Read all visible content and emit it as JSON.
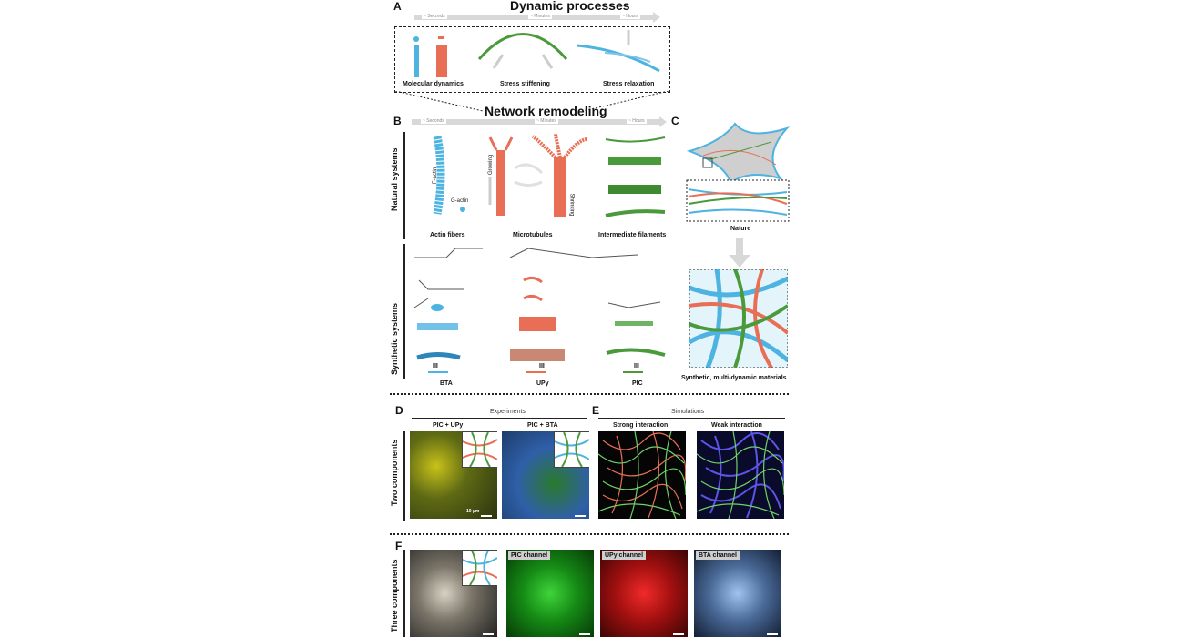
{
  "panelA": {
    "letter": "A",
    "title": "Dynamic processes",
    "timescale": [
      "~ Seconds",
      "~ Minutes",
      "~ Hours"
    ],
    "items": [
      "Molecular dynamics",
      "Stress stiffening",
      "Stress relaxation"
    ]
  },
  "network_remodeling": "Network remodeling",
  "panelB": {
    "letter": "B",
    "timescale": [
      "~ Seconds",
      "~ Minutes",
      "~ Hours"
    ],
    "row_natural": "Natural systems",
    "row_synthetic": "Synthetic systems",
    "natural_items": [
      "Actin fibers",
      "Microtubules",
      "Intermediate filaments"
    ],
    "natural_annotations": {
      "factin": "F-actin",
      "gactin": "G-actin",
      "growing": "Growing",
      "shrinking": "Shrinking"
    },
    "synthetic_items": [
      "BTA",
      "UPy",
      "PIC"
    ],
    "roman": "III"
  },
  "panelC": {
    "letter": "C",
    "nature_label": "Nature",
    "synthetic_label": "Synthetic, multi-dynamic materials"
  },
  "panelD": {
    "letter": "D",
    "header": "Experiments",
    "row_label": "Two components",
    "col1": "PIC + UPy",
    "col2": "PIC + BTA",
    "scale": "10 µm"
  },
  "panelE": {
    "letter": "E",
    "header": "Simulations",
    "col1": "Strong interaction",
    "col2": "Weak interaction"
  },
  "panelF": {
    "letter": "F",
    "row_label": "Three components",
    "channels": [
      "PIC channel",
      "UPy channel",
      "BTA channel"
    ]
  },
  "colors": {
    "blue": "#4db3e0",
    "red": "#e86f55",
    "green": "#4a9a3c",
    "grey_arrow": "#d8d8d8"
  }
}
